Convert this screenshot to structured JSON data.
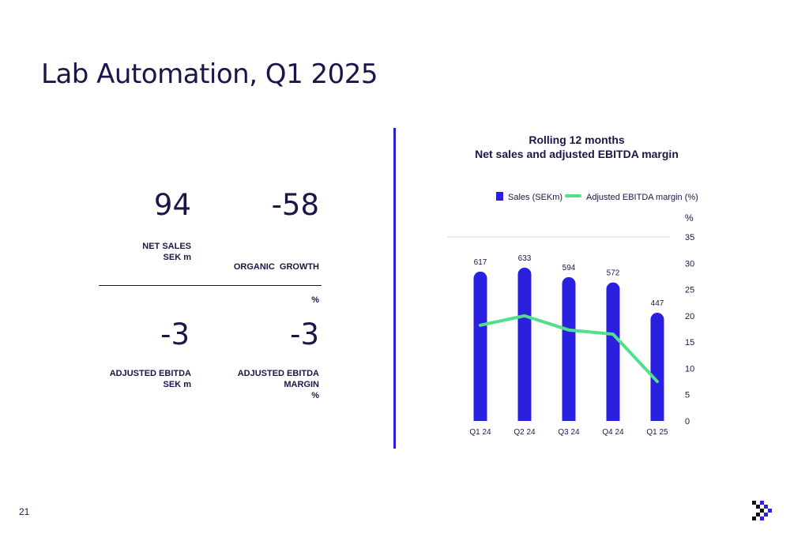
{
  "slide": {
    "title": "Lab Automation, Q1 2025",
    "page_number": "21"
  },
  "kpis": [
    {
      "value": "94",
      "label_lines": [
        "NET SALES",
        "SEK m"
      ]
    },
    {
      "value": "-58",
      "label_lines": [
        "ORGANIC  GROWTH",
        "%"
      ]
    },
    {
      "value": "-3",
      "label_lines": [
        "ADJUSTED EBITDA",
        "SEK m"
      ]
    },
    {
      "value": "-3",
      "label_lines": [
        "ADJUSTED EBITDA",
        "MARGIN",
        "%"
      ]
    }
  ],
  "chart_data": {
    "type": "bar",
    "title_lines": [
      "Rolling 12 months",
      "Net sales and adjusted EBITDA margin"
    ],
    "categories": [
      "Q1 24",
      "Q2 24",
      "Q3 24",
      "Q4 24",
      "Q1 25"
    ],
    "series": [
      {
        "name": "Sales (SEKm)",
        "type": "bar",
        "values": [
          617,
          633,
          594,
          572,
          447
        ],
        "data_labels": [
          "617",
          "633",
          "594",
          "572",
          "447"
        ],
        "color": "#2b1fe0"
      },
      {
        "name": "Adjusted EBITDA margin (%)",
        "type": "line",
        "axis": "right",
        "values": [
          18.2,
          20.0,
          17.3,
          16.5,
          7.5
        ],
        "color": "#4fe08a"
      }
    ],
    "y_right": {
      "label": "%",
      "range": [
        0,
        35
      ],
      "ticks": [
        "0",
        "5",
        "10",
        "15",
        "20",
        "25",
        "30",
        "35"
      ]
    },
    "grid": false,
    "legend_position": "top"
  }
}
